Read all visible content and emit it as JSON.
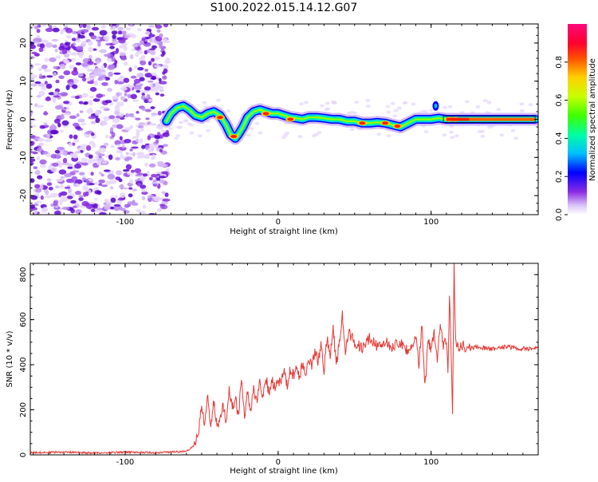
{
  "title": "S100.2022.015.14.12.G07",
  "chart_data": [
    {
      "type": "heatmap",
      "xlabel": "Height of straight line (km)",
      "ylabel": "Frequency (Hz)",
      "xlim": [
        -162,
        170
      ],
      "ylim": [
        -25,
        25
      ],
      "xticks": [
        -100,
        0,
        100
      ],
      "xtick_labels": [
        "-100",
        "0",
        "100"
      ],
      "yticks": [
        -20,
        -10,
        0,
        10,
        20
      ],
      "ytick_labels": [
        "-20",
        "-10",
        "0",
        "10",
        "20"
      ],
      "colorbar": {
        "label": "Normalized spectral amplitude",
        "range": [
          0,
          1
        ],
        "ticks": [
          0.0,
          0.2,
          0.4,
          0.6,
          0.8
        ],
        "tick_labels": [
          "0.0",
          "0.2",
          "0.4",
          "0.6",
          "0.8"
        ],
        "colors": [
          "#ffffff",
          "#c9a8f5",
          "#7f1fe8",
          "#0000ff",
          "#00c8ff",
          "#00ff80",
          "#a0ff00",
          "#ffe000",
          "#ff6000",
          "#ff0000",
          "#ff0080"
        ]
      },
      "noise_region_x": [
        -162,
        -72
      ],
      "frequency_trace": {
        "x": [
          -73,
          -70,
          -66,
          -62,
          -58,
          -54,
          -50,
          -46,
          -42,
          -38,
          -34,
          -31,
          -28,
          -26,
          -23,
          -20,
          -16,
          -12,
          -8,
          -4,
          0,
          4,
          8,
          12,
          16,
          20,
          25,
          30,
          35,
          40,
          45,
          50,
          55,
          60,
          65,
          70,
          75,
          80,
          85,
          90,
          95,
          100,
          105,
          110,
          115,
          120,
          130,
          140,
          150,
          160,
          168
        ],
        "y": [
          -0.5,
          1.5,
          3,
          3.5,
          2.5,
          1,
          0.5,
          1.5,
          2,
          1,
          -1.5,
          -4,
          -5,
          -4,
          -2,
          0.5,
          2,
          2.5,
          2,
          1.5,
          1.5,
          1,
          0.5,
          0.3,
          0,
          0.5,
          0.5,
          0.3,
          0,
          0,
          -0.5,
          -0.5,
          -1,
          -1,
          -0.8,
          -1,
          -1.5,
          -2,
          -1,
          0,
          0,
          0,
          0.3,
          0,
          0,
          0,
          0,
          0,
          0,
          0,
          0
        ]
      },
      "hot_spots": [
        {
          "x": -38,
          "y": 0.5
        },
        {
          "x": -29,
          "y": -4.5
        },
        {
          "x": -8,
          "y": 1.5
        },
        {
          "x": 8,
          "y": 0
        },
        {
          "x": 55,
          "y": -1
        },
        {
          "x": 70,
          "y": -1
        },
        {
          "x": 78,
          "y": -1.8
        },
        {
          "x": 112,
          "y": 0
        },
        {
          "x": 116,
          "y": 0
        }
      ]
    },
    {
      "type": "line",
      "xlabel": "Height of straight line (km)",
      "ylabel": "SNR (10 * v/v)",
      "xlim": [
        -162,
        170
      ],
      "ylim": [
        0,
        850
      ],
      "xticks": [
        -100,
        0,
        100
      ],
      "xtick_labels": [
        "-100",
        "0",
        "100"
      ],
      "yticks": [
        0,
        200,
        400,
        600,
        800
      ],
      "ytick_labels": [
        "0",
        "200",
        "400",
        "600",
        "800"
      ],
      "series": [
        {
          "name": "SNR",
          "color": "#e53935",
          "x": [
            -162,
            -140,
            -120,
            -100,
            -80,
            -60,
            -55,
            -52,
            -50,
            -48,
            -46,
            -44,
            -42,
            -40,
            -38,
            -36,
            -34,
            -32,
            -30,
            -28,
            -26,
            -24,
            -22,
            -20,
            -18,
            -16,
            -14,
            -12,
            -10,
            -8,
            -6,
            -4,
            -2,
            0,
            2,
            4,
            6,
            8,
            10,
            12,
            14,
            16,
            18,
            20,
            22,
            24,
            26,
            28,
            30,
            32,
            34,
            36,
            38,
            40,
            42,
            44,
            46,
            50,
            55,
            60,
            65,
            70,
            75,
            80,
            85,
            90,
            92,
            94,
            96,
            98,
            100,
            102,
            104,
            106,
            108,
            110,
            111,
            112,
            113,
            114,
            115,
            116,
            118,
            120,
            125,
            130,
            140,
            150,
            160,
            170
          ],
          "y": [
            10,
            12,
            8,
            12,
            10,
            15,
            40,
            100,
            220,
            140,
            260,
            130,
            240,
            120,
            170,
            210,
            150,
            300,
            200,
            260,
            160,
            340,
            180,
            280,
            200,
            300,
            230,
            320,
            260,
            340,
            280,
            330,
            300,
            330,
            320,
            380,
            300,
            380,
            350,
            390,
            340,
            410,
            360,
            430,
            390,
            460,
            420,
            480,
            380,
            520,
            430,
            560,
            400,
            500,
            630,
            460,
            540,
            500,
            470,
            520,
            480,
            500,
            480,
            500,
            460,
            520,
            400,
            580,
            300,
            510,
            470,
            540,
            420,
            600,
            480,
            520,
            360,
            700,
            480,
            160,
            850,
            500,
            470,
            490,
            470,
            480,
            470,
            480,
            470,
            475
          ]
        }
      ]
    }
  ]
}
